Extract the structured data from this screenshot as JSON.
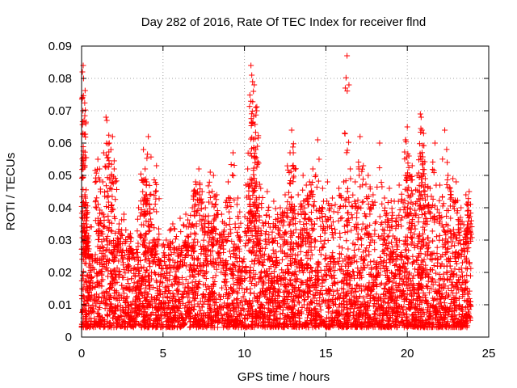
{
  "chart_data": {
    "type": "scatter",
    "title": "Day 282 of 2016, Rate Of TEC Index for receiver flnd",
    "xlabel": "GPS time / hours",
    "ylabel": "ROTI / TECUs",
    "xlim": [
      0,
      25
    ],
    "ylim": [
      0,
      0.09
    ],
    "xticks": [
      0,
      5,
      10,
      15,
      20,
      25
    ],
    "yticks": [
      0,
      0.01,
      0.02,
      0.03,
      0.04,
      0.05,
      0.06,
      0.07,
      0.08,
      0.09
    ],
    "xtick_labels": [
      "0",
      "5",
      "10",
      "15",
      "20",
      "25"
    ],
    "ytick_labels": [
      "0",
      "0.01",
      "0.02",
      "0.03",
      "0.04",
      "0.05",
      "0.06",
      "0.07",
      "0.08",
      "0.09"
    ],
    "marker": "plus",
    "color": "#ff0000",
    "grid": true,
    "series": [
      {
        "name": "ROTI",
        "points": [
          [
            0.05,
            0.082
          ],
          [
            0.1,
            0.084
          ],
          [
            0.12,
            0.08
          ],
          [
            0.08,
            0.07
          ],
          [
            0.15,
            0.067
          ],
          [
            0.2,
            0.044
          ],
          [
            0.25,
            0.04
          ],
          [
            0.3,
            0.036
          ],
          [
            0.35,
            0.03
          ],
          [
            0.5,
            0.025
          ],
          [
            1.0,
            0.055
          ],
          [
            1.1,
            0.052
          ],
          [
            1.3,
            0.048
          ],
          [
            1.5,
            0.068
          ],
          [
            1.55,
            0.067
          ],
          [
            1.7,
            0.06
          ],
          [
            1.8,
            0.058
          ],
          [
            1.9,
            0.062
          ],
          [
            2.0,
            0.052
          ],
          [
            2.3,
            0.035
          ],
          [
            2.6,
            0.038
          ],
          [
            3.0,
            0.032
          ],
          [
            3.5,
            0.04
          ],
          [
            3.8,
            0.058
          ],
          [
            3.9,
            0.052
          ],
          [
            4.0,
            0.048
          ],
          [
            4.1,
            0.062
          ],
          [
            4.2,
            0.044
          ],
          [
            4.4,
            0.03
          ],
          [
            4.6,
            0.053
          ],
          [
            5.2,
            0.03
          ],
          [
            5.6,
            0.035
          ],
          [
            6.0,
            0.028
          ],
          [
            6.4,
            0.038
          ],
          [
            6.8,
            0.04
          ],
          [
            7.0,
            0.048
          ],
          [
            7.2,
            0.052
          ],
          [
            7.4,
            0.045
          ],
          [
            7.6,
            0.04
          ],
          [
            7.9,
            0.051
          ],
          [
            8.1,
            0.05
          ],
          [
            8.3,
            0.044
          ],
          [
            8.6,
            0.038
          ],
          [
            9.0,
            0.048
          ],
          [
            9.3,
            0.057
          ],
          [
            9.6,
            0.043
          ],
          [
            10.2,
            0.052
          ],
          [
            10.4,
            0.084
          ],
          [
            10.45,
            0.081
          ],
          [
            10.5,
            0.079
          ],
          [
            10.55,
            0.076
          ],
          [
            10.6,
            0.078
          ],
          [
            10.7,
            0.071
          ],
          [
            10.75,
            0.07
          ],
          [
            10.8,
            0.059
          ],
          [
            11.0,
            0.046
          ],
          [
            11.4,
            0.045
          ],
          [
            11.8,
            0.042
          ],
          [
            12.2,
            0.04
          ],
          [
            12.5,
            0.044
          ],
          [
            12.8,
            0.057
          ],
          [
            12.9,
            0.064
          ],
          [
            13.0,
            0.057
          ],
          [
            13.3,
            0.044
          ],
          [
            13.6,
            0.05
          ],
          [
            13.8,
            0.047
          ],
          [
            14.0,
            0.048
          ],
          [
            14.2,
            0.052
          ],
          [
            14.5,
            0.061
          ],
          [
            14.8,
            0.046
          ],
          [
            15.1,
            0.048
          ],
          [
            15.4,
            0.043
          ],
          [
            15.8,
            0.046
          ],
          [
            16.1,
            0.048
          ],
          [
            16.3,
            0.087
          ],
          [
            16.5,
            0.052
          ],
          [
            16.8,
            0.048
          ],
          [
            17.1,
            0.062
          ],
          [
            17.3,
            0.053
          ],
          [
            17.6,
            0.05
          ],
          [
            17.9,
            0.044
          ],
          [
            18.3,
            0.06
          ],
          [
            18.6,
            0.043
          ],
          [
            18.9,
            0.046
          ],
          [
            19.2,
            0.042
          ],
          [
            19.5,
            0.047
          ],
          [
            19.9,
            0.061
          ],
          [
            20.0,
            0.065
          ],
          [
            20.1,
            0.056
          ],
          [
            20.3,
            0.053
          ],
          [
            20.6,
            0.05
          ],
          [
            20.8,
            0.069
          ],
          [
            20.85,
            0.068
          ],
          [
            20.9,
            0.064
          ],
          [
            21.0,
            0.063
          ],
          [
            21.1,
            0.049
          ],
          [
            21.4,
            0.046
          ],
          [
            21.7,
            0.06
          ],
          [
            22.0,
            0.047
          ],
          [
            22.3,
            0.064
          ],
          [
            22.5,
            0.05
          ],
          [
            22.8,
            0.049
          ],
          [
            23.0,
            0.048
          ],
          [
            23.3,
            0.04
          ],
          [
            23.6,
            0.044
          ],
          [
            23.7,
            0.039
          ],
          [
            23.8,
            0.045
          ]
        ],
        "baseline_band": {
          "x_range": [
            0,
            23.9
          ],
          "typical_range": [
            0.003,
            0.025
          ],
          "note": "dense cloud of points between roughly 0.003 and 0.025 TECU/s across the whole day"
        }
      }
    ]
  }
}
